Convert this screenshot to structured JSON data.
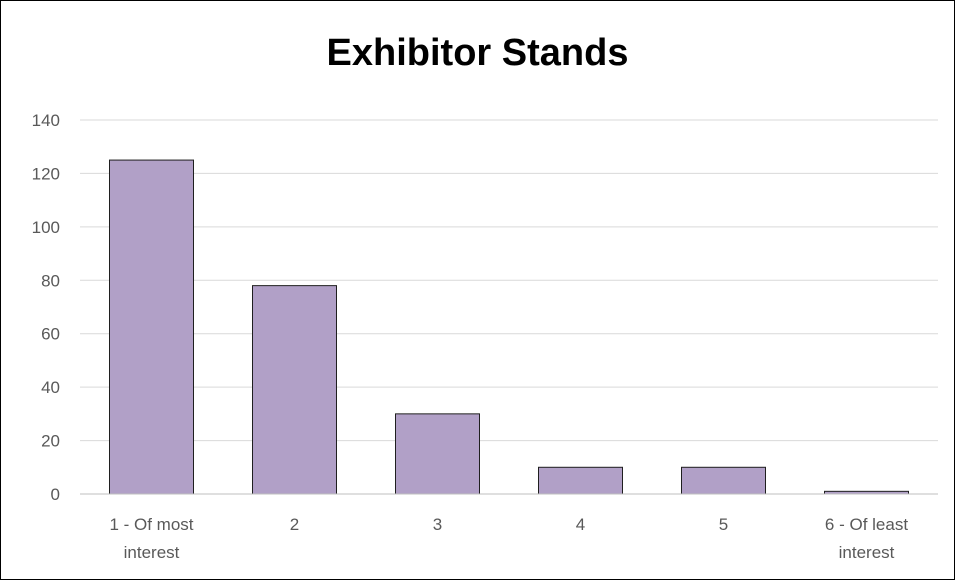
{
  "chart_data": {
    "type": "bar",
    "title": "Exhibitor Stands",
    "xlabel": "",
    "ylabel": "",
    "categories": [
      [
        "1 - Of most",
        "interest"
      ],
      [
        "2"
      ],
      [
        "3"
      ],
      [
        "4"
      ],
      [
        "5"
      ],
      [
        "6 - Of least",
        "interest"
      ]
    ],
    "values": [
      125,
      78,
      30,
      10,
      10,
      1
    ],
    "ylim": [
      0,
      140
    ],
    "yticks": [
      0,
      20,
      40,
      60,
      80,
      100,
      120,
      140
    ],
    "grid": true,
    "legend": "none",
    "colors": {
      "bar_fill": "#b1a0c7",
      "bar_stroke": "#1f1f1f",
      "grid": "#d9d9d9",
      "axis": "#bfbfbf",
      "tick_text": "#595959"
    }
  }
}
